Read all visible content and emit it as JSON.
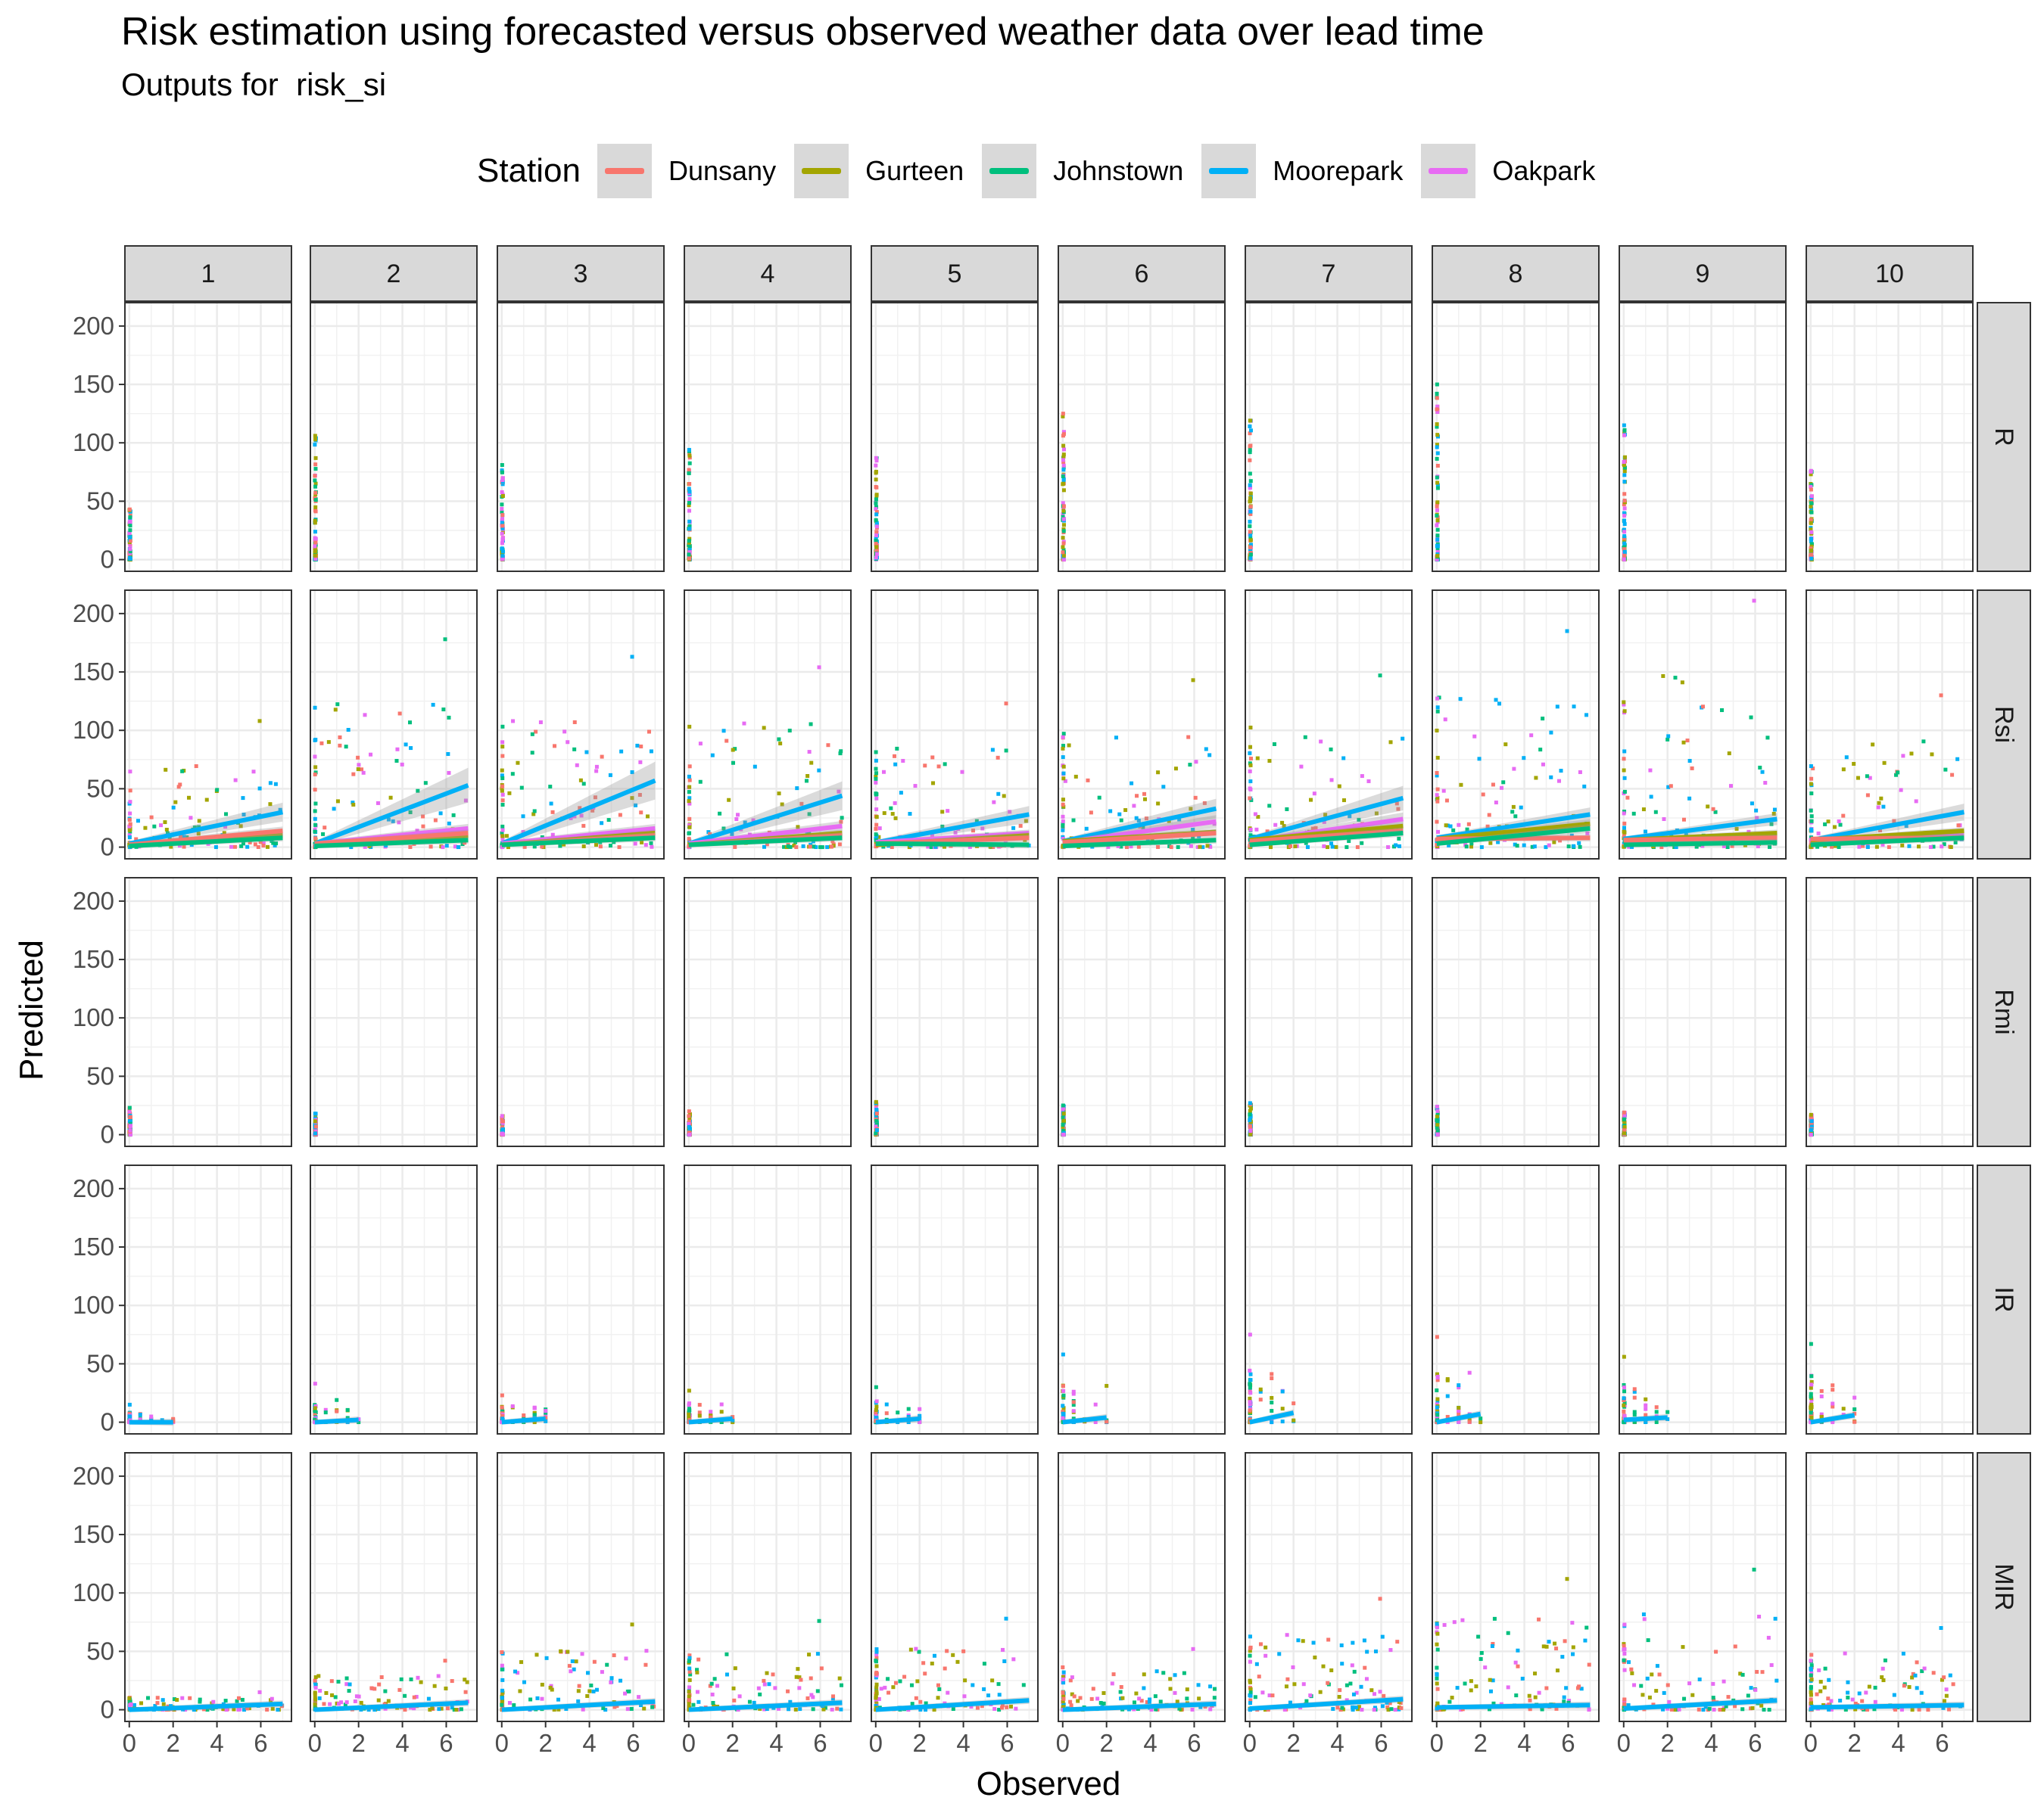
{
  "title": "Risk estimation using forecasted versus observed weather data over lead time",
  "subtitle": "Outputs for  risk_si",
  "legend": {
    "title": "Station",
    "items": [
      {
        "label": "Dunsany",
        "color": "#F8766D"
      },
      {
        "label": "Gurteen",
        "color": "#A3A500"
      },
      {
        "label": "Johnstown",
        "color": "#00BF7D"
      },
      {
        "label": "Moorepark",
        "color": "#00B0F6"
      },
      {
        "label": "Oakpark",
        "color": "#E76BF3"
      }
    ]
  },
  "chart_data": {
    "type": "scatter",
    "facet_columns": [
      "1",
      "2",
      "3",
      "4",
      "5",
      "6",
      "7",
      "8",
      "9",
      "10"
    ],
    "facet_rows": [
      "R",
      "Rsi",
      "Rmi",
      "IR",
      "MIR"
    ],
    "xlabel": "Observed",
    "ylabel": "Predicted",
    "xlim": [
      -0.2,
      7.4
    ],
    "ylim": [
      -10,
      220
    ],
    "x_ticks": [
      0,
      2,
      4,
      6
    ],
    "y_ticks": [
      0,
      50,
      100,
      150,
      200
    ],
    "grid": true,
    "legend_position": "top",
    "smooth": "linear fit lines with grey confidence bands per station",
    "series": [
      {
        "name": "Dunsany",
        "color": "#F8766D"
      },
      {
        "name": "Gurteen",
        "color": "#A3A500"
      },
      {
        "name": "Johnstown",
        "color": "#00BF7D"
      },
      {
        "name": "Moorepark",
        "color": "#00B0F6"
      },
      {
        "name": "Oakpark",
        "color": "#E76BF3"
      }
    ],
    "panel_extents": {
      "R": {
        "observed_max": 0.05,
        "predicted_max": [
          43,
          106,
          81,
          94,
          87,
          125,
          119,
          150,
          115,
          76
        ]
      },
      "Rsi": {
        "observed_max": 7,
        "predicted_max": [
          108,
          178,
          163,
          154,
          123,
          143,
          147,
          185,
          211,
          130
        ]
      },
      "Rmi": {
        "observed_max": 0.05,
        "predicted_max": [
          23,
          18,
          16,
          20,
          28,
          25,
          27,
          24,
          19,
          17
        ]
      },
      "IR": {
        "observed_max": 2,
        "predicted_max": [
          15,
          33,
          23,
          27,
          30,
          58,
          75,
          73,
          56,
          67
        ]
      },
      "MIR": {
        "observed_max": 7,
        "predicted_max": [
          15,
          42,
          73,
          76,
          78,
          52,
          95,
          112,
          120,
          70
        ]
      }
    },
    "fit_lines": {
      "Rsi": {
        "Moorepark": [
          [
            3,
            30
          ],
          [
            3,
            53
          ],
          [
            3,
            57
          ],
          [
            3,
            44
          ],
          [
            4,
            28
          ],
          [
            5,
            33
          ],
          [
            7,
            42
          ],
          [
            8,
            28
          ],
          [
            7,
            24
          ],
          [
            6,
            30
          ]
        ],
        "Oakpark": [
          [
            2,
            12
          ],
          [
            3,
            16
          ],
          [
            3,
            16
          ],
          [
            3,
            18
          ],
          [
            4,
            12
          ],
          [
            4,
            22
          ],
          [
            5,
            24
          ],
          [
            6,
            18
          ],
          [
            5,
            10
          ],
          [
            5,
            10
          ]
        ],
        "Gurteen": [
          [
            2,
            10
          ],
          [
            2,
            10
          ],
          [
            2,
            12
          ],
          [
            2,
            12
          ],
          [
            2,
            10
          ],
          [
            5,
            13
          ],
          [
            6,
            18
          ],
          [
            7,
            20
          ],
          [
            6,
            12
          ],
          [
            6,
            14
          ]
        ],
        "Dunsany": [
          [
            2,
            14
          ],
          [
            3,
            12
          ],
          [
            2,
            10
          ],
          [
            2,
            10
          ],
          [
            3,
            8
          ],
          [
            4,
            12
          ],
          [
            5,
            14
          ],
          [
            7,
            8
          ],
          [
            6,
            8
          ],
          [
            7,
            8
          ]
        ],
        "Johnstown": [
          [
            1,
            8
          ],
          [
            1,
            6
          ],
          [
            2,
            8
          ],
          [
            2,
            8
          ],
          [
            3,
            2
          ],
          [
            1,
            6
          ],
          [
            2,
            12
          ],
          [
            3,
            16
          ],
          [
            2,
            4
          ],
          [
            2,
            8
          ]
        ]
      },
      "IR": {
        "Moorepark": [
          [
            0,
            0
          ],
          [
            0,
            2
          ],
          [
            0,
            3
          ],
          [
            0,
            3
          ],
          [
            0,
            3
          ],
          [
            0,
            4
          ],
          [
            0,
            8
          ],
          [
            0,
            7
          ],
          [
            2,
            4
          ],
          [
            0,
            6
          ]
        ]
      },
      "MIR": {
        "Moorepark": [
          [
            0,
            5
          ],
          [
            0,
            6
          ],
          [
            0,
            7
          ],
          [
            0,
            6
          ],
          [
            0,
            8
          ],
          [
            0,
            5
          ],
          [
            1,
            9
          ],
          [
            2,
            4
          ],
          [
            1,
            8
          ],
          [
            2,
            4
          ]
        ]
      }
    }
  }
}
